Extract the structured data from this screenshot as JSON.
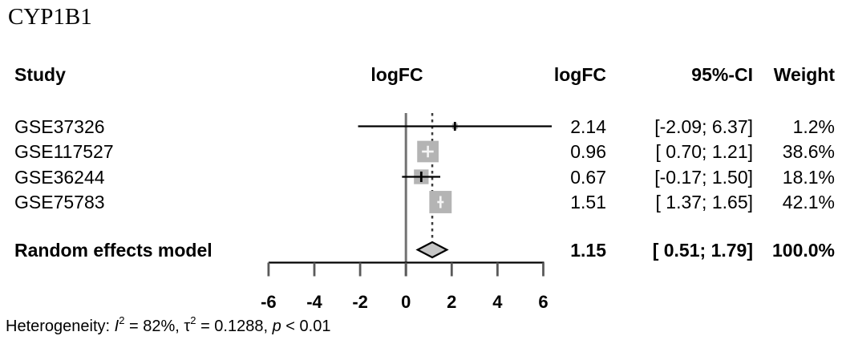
{
  "title": "CYP1B1",
  "columns": {
    "study": "Study",
    "plot_header": "logFC",
    "logfc": "logFC",
    "ci": "95%-CI",
    "weight": "Weight"
  },
  "chart_data": {
    "type": "forest",
    "effect_measure": "logFC",
    "studies": [
      {
        "name": "GSE37326",
        "logfc": 2.14,
        "lower": -2.09,
        "upper": 6.37,
        "weight_pct": 1.2,
        "logfc_text": "2.14",
        "ci_text": "[-2.09; 6.37]",
        "weight_text": "1.2%"
      },
      {
        "name": "GSE117527",
        "logfc": 0.96,
        "lower": 0.7,
        "upper": 1.21,
        "weight_pct": 38.6,
        "logfc_text": "0.96",
        "ci_text": "[ 0.70; 1.21]",
        "weight_text": "38.6%"
      },
      {
        "name": "GSE36244",
        "logfc": 0.67,
        "lower": -0.17,
        "upper": 1.5,
        "weight_pct": 18.1,
        "logfc_text": "0.67",
        "ci_text": "[-0.17; 1.50]",
        "weight_text": "18.1%"
      },
      {
        "name": "GSE75783",
        "logfc": 1.51,
        "lower": 1.37,
        "upper": 1.65,
        "weight_pct": 42.1,
        "logfc_text": "1.51",
        "ci_text": "[ 1.37; 1.65]",
        "weight_text": "42.1%"
      }
    ],
    "summary": {
      "name": "Random effects model",
      "logfc": 1.15,
      "lower": 0.51,
      "upper": 1.79,
      "logfc_text": "1.15",
      "ci_text": "[ 0.51; 1.79]",
      "weight_text": "100.0%"
    },
    "axis": {
      "ticks": [
        -6,
        -4,
        -2,
        0,
        2,
        4,
        6
      ],
      "xlim": [
        -6,
        6
      ],
      "reference_line": 0,
      "summary_effect_line": 1.15
    },
    "heterogeneity": {
      "I2": "82%",
      "tau2": "0.1288",
      "p": "< 0.01"
    },
    "footer_parts": [
      {
        "t": "Heterogeneity: "
      },
      {
        "t": "I",
        "i": 1
      },
      {
        "t": "2",
        "sup": 1
      },
      {
        "t": " = 82%, "
      },
      {
        "t": "τ"
      },
      {
        "t": "2",
        "sup": 1
      },
      {
        "t": " = 0.1288, "
      },
      {
        "t": "p",
        "i": 1
      },
      {
        "t": " < 0.01"
      }
    ]
  },
  "colors": {
    "background": "#ffffff",
    "text": "#000000",
    "square": "#b4b4b4",
    "diamond_fill": "#c6c6c6",
    "diamond_stroke": "#000000",
    "reference_line": "#737373",
    "dotted_line": "#3d3d3d",
    "axis_line": "#000000",
    "tick": "#5a5a5a",
    "ci_line": "#000000",
    "cross": "#f5f5f5"
  }
}
